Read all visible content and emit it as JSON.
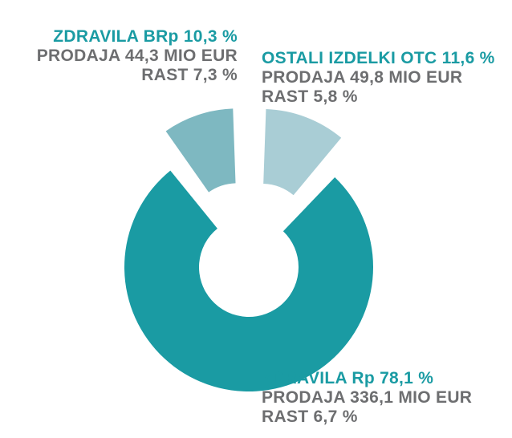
{
  "chart_data": {
    "type": "donut",
    "title": "",
    "slices": [
      {
        "name": "ZDRAVILA Rp",
        "percent": 78.1,
        "share_label": "78,1 %",
        "sales": "PRODAJA 336,1 MIO EUR",
        "growth": "RAST 6,7 %",
        "color": "#1a9ba3",
        "exploded": false
      },
      {
        "name": "ZDRAVILA BRp",
        "percent": 10.3,
        "share_label": "10,3 %",
        "sales": "PRODAJA 44,3 MIO EUR",
        "growth": "RAST 7,3 %",
        "color": "#7eb8c1",
        "exploded": true
      },
      {
        "name": "OSTALI IZDELKI OTC",
        "percent": 11.6,
        "share_label": "11,6 %",
        "sales": "PRODAJA 49,8 MIO EUR",
        "growth": "RAST 5,8 %",
        "color": "#a9cdd5",
        "exploded": true
      }
    ]
  },
  "labels": {
    "brp": {
      "title": "ZDRAVILA BRp 10,3 %",
      "sales": "PRODAJA 44,3 MIO EUR",
      "growth": "RAST 7,3 %"
    },
    "otc": {
      "title": "OSTALI IZDELKI OTC 11,6 %",
      "sales": "PRODAJA 49,8 MIO EUR",
      "growth": "RAST 5,8 %"
    },
    "rp": {
      "title": "ZDRAVILA Rp 78,1 %",
      "sales": "PRODAJA 336,1 MIO EUR",
      "growth": "RAST 6,7 %"
    }
  }
}
